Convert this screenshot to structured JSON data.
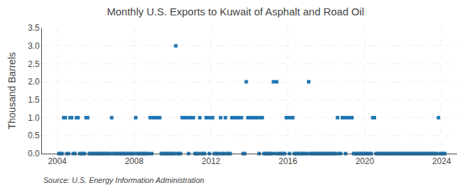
{
  "chart_data": {
    "type": "scatter",
    "title": "Monthly U.S. Exports to Kuwait of Asphalt and Road Oil",
    "ylabel": "Thousand Barrels",
    "annotations": [
      "Source: U.S. Energy Information Administration"
    ],
    "marker": "square",
    "grid": true,
    "xlim": [
      2003.2,
      2024.8
    ],
    "xticks": [
      2004,
      2008,
      2012,
      2016,
      2020,
      2024
    ],
    "ylim": [
      0.0,
      3.5
    ],
    "yticks": [
      {
        "value": 0.0,
        "label": "0.0"
      },
      0.5,
      {
        "value": 1.0,
        "label": "1.0"
      },
      1.5,
      {
        "value": 2.0,
        "label": "2.0"
      },
      2.5,
      {
        "value": 3.0,
        "label": "3.0"
      },
      3.5
    ],
    "x": [
      2004.0833333333333,
      2004.1666666666667,
      2004.25,
      2004.3333333333333,
      2004.4166666666667,
      2004.5,
      2004.5833333333333,
      2004.6666666666667,
      2004.75,
      2004.8333333333333,
      2004.9166666666667,
      2005,
      2005.0833333333333,
      2005.1666666666667,
      2005.25,
      2005.3333333333333,
      2005.4166666666667,
      2005.5,
      2005.5833333333333,
      2005.6666666666667,
      2005.75,
      2005.8333333333333,
      2005.9166666666667,
      2006,
      2006.0833333333333,
      2006.1666666666667,
      2006.25,
      2006.3333333333333,
      2006.4166666666667,
      2006.5,
      2006.5833333333333,
      2006.6666666666667,
      2006.75,
      2006.8333333333333,
      2006.9166666666667,
      2007,
      2007.0833333333333,
      2007.1666666666667,
      2007.25,
      2007.3333333333333,
      2007.4166666666667,
      2007.5,
      2007.5833333333333,
      2007.6666666666667,
      2007.75,
      2007.8333333333333,
      2007.9166666666667,
      2008,
      2008.0833333333333,
      2008.1666666666667,
      2008.25,
      2008.3333333333333,
      2008.4166666666667,
      2008.5,
      2008.5833333333333,
      2008.6666666666667,
      2008.75,
      2008.8333333333333,
      2008.9166666666667,
      2009,
      2009.0833333333333,
      2009.1666666666667,
      2009.25,
      2009.3333333333333,
      2009.4166666666667,
      2009.5,
      2009.5833333333333,
      2009.6666666666667,
      2009.75,
      2009.8333333333333,
      2009.9166666666667,
      2010,
      2010.0833333333333,
      2010.1666666666667,
      2010.25,
      2010.3333333333333,
      2010.4166666666667,
      2010.5,
      2010.5833333333333,
      2010.6666666666667,
      2010.75,
      2010.8333333333333,
      2010.9166666666667,
      2011,
      2011.0833333333333,
      2011.1666666666667,
      2011.25,
      2011.3333333333333,
      2011.4166666666667,
      2011.5,
      2011.5833333333333,
      2011.6666666666667,
      2011.75,
      2011.8333333333333,
      2011.9166666666667,
      2012,
      2012.0833333333333,
      2012.1666666666667,
      2012.25,
      2012.3333333333333,
      2012.4166666666667,
      2012.5,
      2012.5833333333333,
      2012.6666666666667,
      2012.75,
      2012.8333333333333,
      2012.9166666666667,
      2013,
      2013.0833333333333,
      2013.1666666666667,
      2013.25,
      2013.3333333333333,
      2013.4166666666667,
      2013.5,
      2013.5833333333333,
      2013.6666666666667,
      2013.75,
      2013.8333333333333,
      2013.9166666666667,
      2014,
      2014.0833333333333,
      2014.1666666666667,
      2014.25,
      2014.3333333333333,
      2014.4166666666667,
      2014.5,
      2014.5833333333333,
      2014.6666666666667,
      2014.75,
      2014.8333333333333,
      2014.9166666666667,
      2015,
      2015.0833333333333,
      2015.1666666666667,
      2015.25,
      2015.3333333333333,
      2015.4166666666667,
      2015.5,
      2015.5833333333333,
      2015.6666666666667,
      2015.75,
      2015.8333333333333,
      2015.9166666666667,
      2016,
      2016.0833333333333,
      2016.1666666666667,
      2016.25,
      2016.3333333333333,
      2016.4166666666667,
      2016.5,
      2016.5833333333333,
      2016.6666666666667,
      2016.75,
      2016.8333333333333,
      2016.9166666666667,
      2017,
      2017.0833333333333,
      2017.1666666666667,
      2017.25,
      2017.3333333333333,
      2017.4166666666667,
      2017.5,
      2017.5833333333333,
      2017.6666666666667,
      2017.75,
      2017.8333333333333,
      2017.9166666666667,
      2018,
      2018.0833333333333,
      2018.1666666666667,
      2018.25,
      2018.3333333333333,
      2018.4166666666667,
      2018.5,
      2018.5833333333333,
      2018.6666666666667,
      2018.75,
      2018.8333333333333,
      2018.9166666666667,
      2019,
      2019.0833333333333,
      2019.1666666666667,
      2019.25,
      2019.3333333333333,
      2019.4166666666667,
      2019.5,
      2019.5833333333333,
      2019.6666666666667,
      2019.75,
      2019.8333333333333,
      2019.9166666666667,
      2020,
      2020.0833333333333,
      2020.1666666666667,
      2020.25,
      2020.3333333333333,
      2020.4166666666667,
      2020.5,
      2020.5833333333333,
      2020.6666666666667,
      2020.75,
      2020.8333333333333,
      2020.9166666666667,
      2021,
      2021.0833333333333,
      2021.1666666666667,
      2021.25,
      2021.3333333333333,
      2021.4166666666667,
      2021.5,
      2021.5833333333333,
      2021.6666666666667,
      2021.75,
      2021.8333333333333,
      2021.9166666666667,
      2022,
      2022.0833333333333,
      2022.1666666666667,
      2022.25,
      2022.3333333333333,
      2022.4166666666667,
      2022.5,
      2022.5833333333333,
      2022.6666666666667,
      2022.75,
      2022.8333333333333,
      2022.9166666666667,
      2023,
      2023.0833333333333,
      2023.1666666666667,
      2023.25,
      2023.3333333333333,
      2023.4166666666667,
      2023.5,
      2023.5833333333333,
      2023.6666666666667,
      2023.75,
      2023.8333333333333,
      2023.9166666666667,
      2024,
      2024.0833333333333,
      2024.1666666666667
    ],
    "values": [
      0,
      0,
      0,
      1,
      1,
      0,
      0,
      1,
      1,
      0,
      0,
      1,
      1,
      0,
      0,
      0,
      0,
      1,
      1,
      0,
      0,
      0,
      0,
      0,
      0,
      0,
      0,
      0,
      0,
      0,
      0,
      0,
      0,
      1,
      0,
      0,
      0,
      0,
      0,
      0,
      0,
      0,
      0,
      0,
      0,
      0,
      0,
      0,
      1,
      0,
      0,
      0,
      0,
      0,
      0,
      0,
      0,
      1,
      0,
      1,
      1,
      1,
      1,
      1,
      0,
      0,
      0,
      0,
      0,
      0,
      0,
      0,
      0,
      3,
      0,
      0,
      0,
      1,
      1,
      1,
      1,
      0,
      1,
      1,
      1,
      0,
      0,
      0,
      1,
      0,
      0,
      0,
      1,
      1,
      0,
      1,
      1,
      0,
      0,
      0,
      0,
      1,
      0,
      0,
      1,
      0,
      0,
      0,
      1,
      1,
      1,
      1,
      1,
      1,
      1,
      0,
      0,
      2,
      1,
      1,
      1,
      1,
      1,
      1,
      1,
      0,
      1,
      1,
      0,
      0,
      0,
      0,
      0,
      0,
      2,
      0,
      2,
      0,
      0,
      0,
      0,
      0,
      1,
      1,
      0,
      1,
      1,
      0,
      0,
      0,
      0,
      0,
      0,
      0,
      0,
      0,
      2,
      0,
      0,
      0,
      0,
      0,
      0,
      0,
      0,
      0,
      0,
      0,
      0,
      0,
      0,
      0,
      0,
      0,
      1,
      0,
      0,
      1,
      1,
      0,
      1,
      1,
      1,
      1,
      0,
      0,
      0,
      0,
      0,
      0,
      0,
      0,
      0,
      0,
      0,
      0,
      1,
      1,
      0,
      0,
      0,
      0,
      0,
      0,
      0,
      0,
      0,
      0,
      0,
      0,
      0,
      0,
      0,
      0,
      0,
      0,
      0,
      0,
      0,
      0,
      0,
      0,
      0,
      0,
      0,
      0,
      0,
      0,
      0,
      0,
      0,
      0,
      0,
      0,
      0,
      0,
      0,
      1,
      0,
      0,
      0,
      0
    ]
  }
}
